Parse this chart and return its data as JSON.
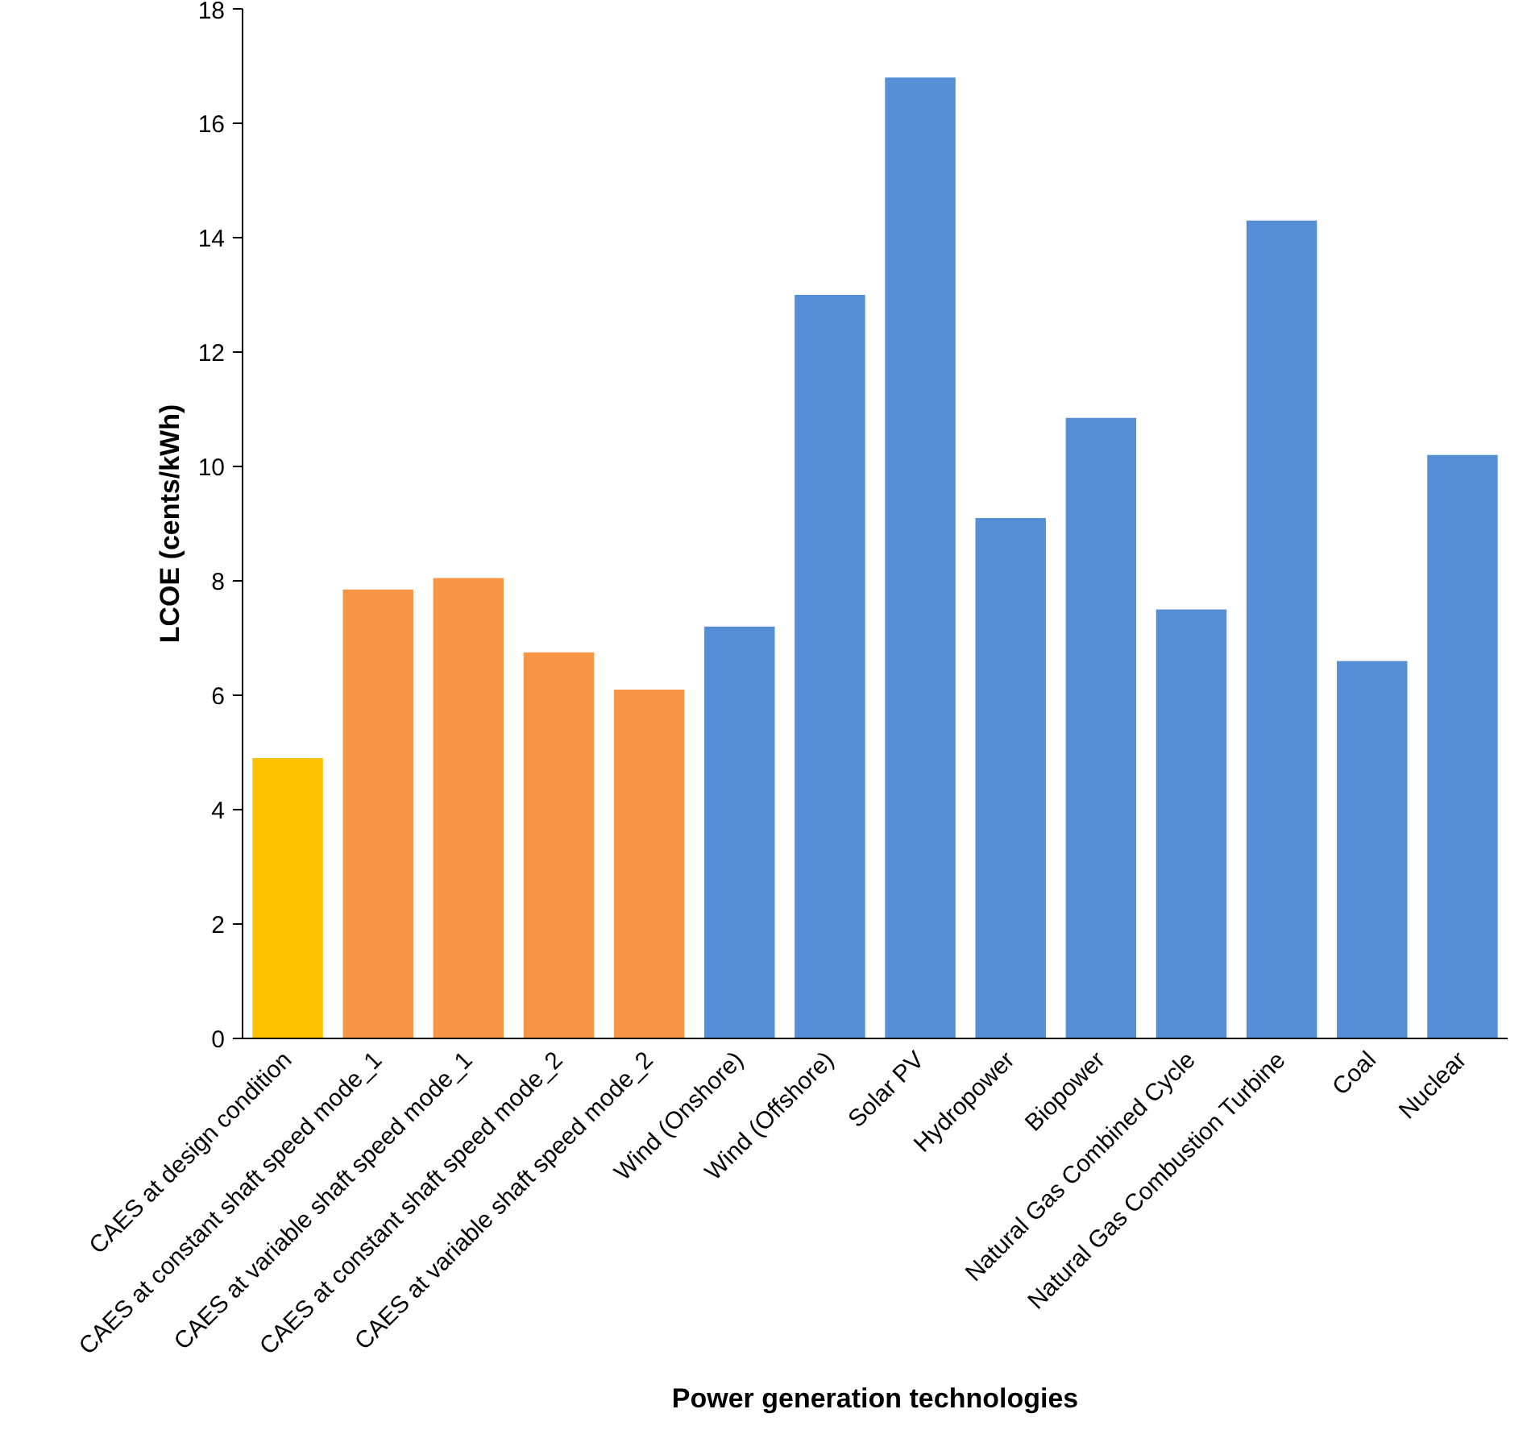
{
  "chart_data": {
    "type": "bar",
    "xlabel": "Power generation technologies",
    "ylabel": "LCOE (cents/kWh)",
    "categories": [
      "CAES at design condition",
      "CAES at constant shaft speed mode_1",
      "CAES at variable shaft speed mode_1",
      "CAES at constant shaft speed mode_2",
      "CAES at variable shaft speed mode_2",
      "Wind (Onshore)",
      "Wind (Offshore)",
      "Solar PV",
      "Hydropower",
      "Biopower",
      "Natural Gas Combined Cycle",
      "Natural Gas Combustion Turbine",
      "Coal",
      "Nuclear"
    ],
    "values": [
      4.9,
      7.85,
      8.05,
      6.75,
      6.1,
      7.2,
      13.0,
      16.8,
      9.1,
      10.85,
      7.5,
      14.3,
      6.6,
      10.2
    ],
    "colors": [
      "#ffc000",
      "#f79646",
      "#f79646",
      "#f79646",
      "#f79646",
      "#558ed5",
      "#558ed5",
      "#558ed5",
      "#558ed5",
      "#558ed5",
      "#558ed5",
      "#558ed5",
      "#558ed5",
      "#558ed5"
    ],
    "ylim": [
      0,
      18
    ],
    "yticks": [
      0,
      2,
      4,
      6,
      8,
      10,
      12,
      14,
      16,
      18
    ],
    "grid": false
  }
}
